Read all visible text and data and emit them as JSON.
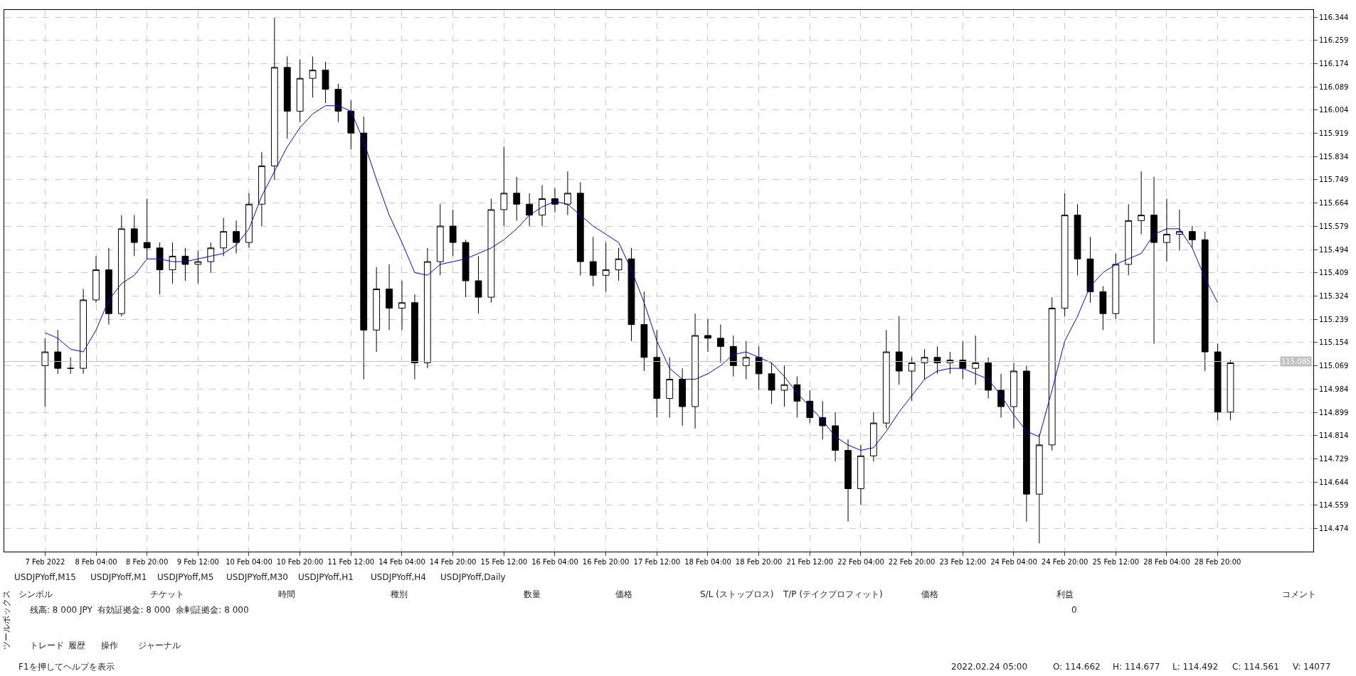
{
  "chart_data": {
    "type": "candlestick",
    "categories": [
      "7 Feb 2022",
      null,
      null,
      null,
      "8 Feb 04:00",
      null,
      null,
      null,
      "8 Feb 20:00",
      null,
      null,
      null,
      "9 Feb 12:00",
      null,
      null,
      null,
      "10 Feb 04:00",
      null,
      null,
      null,
      "10 Feb 20:00",
      null,
      null,
      null,
      "11 Feb 12:00",
      null,
      null,
      null,
      "14 Feb 04:00",
      null,
      null,
      null,
      "14 Feb 20:00",
      null,
      null,
      null,
      "15 Feb 12:00",
      null,
      null,
      null,
      "16 Feb 04:00",
      null,
      null,
      null,
      "16 Feb 20:00",
      null,
      null,
      null,
      "17 Feb 12:00",
      null,
      null,
      null,
      "18 Feb 04:00",
      null,
      null,
      null,
      "18 Feb 20:00",
      null,
      null,
      null,
      "21 Feb 12:00",
      null,
      null,
      null,
      "22 Feb 04:00",
      null,
      null,
      null,
      "22 Feb 20:00",
      null,
      null,
      null,
      "23 Feb 12:00",
      null,
      null,
      null,
      "24 Feb 04:00",
      null,
      null,
      null,
      "24 Feb 20:00",
      null,
      null,
      null,
      "25 Feb 12:00",
      null,
      null,
      null,
      "28 Feb 04:00",
      null,
      null,
      null,
      "28 Feb 20:00",
      null
    ],
    "series": [
      {
        "color": "#000000",
        "ohlc": [
          [
            115.07,
            115.17,
            114.92,
            115.12
          ],
          [
            115.12,
            115.2,
            115.04,
            115.06
          ],
          [
            115.06,
            115.1,
            115.04,
            115.06
          ],
          [
            115.06,
            115.35,
            115.04,
            115.31
          ],
          [
            115.31,
            115.47,
            115.3,
            115.42
          ],
          [
            115.42,
            115.5,
            115.22,
            115.26
          ],
          [
            115.26,
            115.62,
            115.25,
            115.57
          ],
          [
            115.57,
            115.62,
            115.47,
            115.52
          ],
          [
            115.52,
            115.68,
            115.46,
            115.5
          ],
          [
            115.5,
            115.52,
            115.33,
            115.42
          ],
          [
            115.42,
            115.52,
            115.37,
            115.47
          ],
          [
            115.47,
            115.5,
            115.38,
            115.44
          ],
          [
            115.44,
            115.49,
            115.37,
            115.45
          ],
          [
            115.45,
            115.52,
            115.41,
            115.5
          ],
          [
            115.5,
            115.61,
            115.47,
            115.56
          ],
          [
            115.56,
            115.6,
            115.48,
            115.52
          ],
          [
            115.52,
            115.7,
            115.5,
            115.66
          ],
          [
            115.66,
            115.85,
            115.58,
            115.8
          ],
          [
            115.8,
            116.34,
            115.75,
            116.16
          ],
          [
            116.16,
            116.2,
            115.9,
            116.0
          ],
          [
            116.0,
            116.19,
            115.96,
            116.12
          ],
          [
            116.12,
            116.2,
            116.05,
            116.15
          ],
          [
            116.15,
            116.18,
            116.03,
            116.08
          ],
          [
            116.08,
            116.1,
            115.96,
            116.0
          ],
          [
            116.0,
            116.04,
            115.86,
            115.92
          ],
          [
            115.92,
            115.98,
            115.02,
            115.2
          ],
          [
            115.2,
            115.43,
            115.12,
            115.35
          ],
          [
            115.35,
            115.44,
            115.2,
            115.28
          ],
          [
            115.28,
            115.38,
            115.2,
            115.3
          ],
          [
            115.3,
            115.33,
            115.02,
            115.08
          ],
          [
            115.08,
            115.5,
            115.06,
            115.45
          ],
          [
            115.45,
            115.66,
            115.4,
            115.58
          ],
          [
            115.58,
            115.64,
            115.47,
            115.52
          ],
          [
            115.52,
            115.53,
            115.32,
            115.38
          ],
          [
            115.38,
            115.47,
            115.26,
            115.32
          ],
          [
            115.32,
            115.68,
            115.3,
            115.64
          ],
          [
            115.64,
            115.87,
            115.58,
            115.7
          ],
          [
            115.7,
            115.76,
            115.6,
            115.66
          ],
          [
            115.66,
            115.7,
            115.58,
            115.62
          ],
          [
            115.62,
            115.73,
            115.58,
            115.68
          ],
          [
            115.68,
            115.72,
            115.63,
            115.66
          ],
          [
            115.66,
            115.78,
            115.62,
            115.7
          ],
          [
            115.7,
            115.74,
            115.4,
            115.45
          ],
          [
            115.45,
            115.54,
            115.36,
            115.4
          ],
          [
            115.4,
            115.52,
            115.34,
            115.42
          ],
          [
            115.42,
            115.5,
            115.38,
            115.46
          ],
          [
            115.46,
            115.5,
            115.16,
            115.22
          ],
          [
            115.22,
            115.34,
            115.05,
            115.1
          ],
          [
            115.1,
            115.2,
            114.88,
            114.95
          ],
          [
            114.95,
            115.1,
            114.88,
            115.02
          ],
          [
            115.02,
            115.06,
            114.85,
            114.92
          ],
          [
            114.92,
            115.26,
            114.84,
            115.18
          ],
          [
            115.18,
            115.24,
            115.12,
            115.17
          ],
          [
            115.17,
            115.22,
            115.08,
            115.14
          ],
          [
            115.14,
            115.18,
            115.03,
            115.07
          ],
          [
            115.07,
            115.16,
            115.02,
            115.1
          ],
          [
            115.1,
            115.14,
            114.98,
            115.04
          ],
          [
            115.04,
            115.08,
            114.93,
            114.98
          ],
          [
            114.98,
            115.07,
            114.92,
            115.0
          ],
          [
            115.0,
            115.03,
            114.88,
            114.94
          ],
          [
            114.94,
            114.98,
            114.86,
            114.88
          ],
          [
            114.88,
            114.94,
            114.8,
            114.85
          ],
          [
            114.85,
            114.9,
            114.72,
            114.76
          ],
          [
            114.76,
            114.8,
            114.5,
            114.62
          ],
          [
            114.62,
            114.78,
            114.56,
            114.74
          ],
          [
            114.74,
            114.9,
            114.72,
            114.86
          ],
          [
            114.86,
            115.2,
            114.84,
            115.12
          ],
          [
            115.12,
            115.25,
            115.0,
            115.05
          ],
          [
            115.05,
            115.1,
            114.94,
            115.08
          ],
          [
            115.08,
            115.13,
            115.02,
            115.1
          ],
          [
            115.1,
            115.14,
            115.04,
            115.08
          ],
          [
            115.08,
            115.12,
            115.04,
            115.09
          ],
          [
            115.09,
            115.16,
            115.02,
            115.06
          ],
          [
            115.06,
            115.18,
            115.0,
            115.08
          ],
          [
            115.08,
            115.1,
            114.95,
            114.98
          ],
          [
            114.98,
            115.04,
            114.88,
            114.92
          ],
          [
            114.92,
            115.08,
            114.84,
            115.05
          ],
          [
            115.05,
            115.07,
            114.5,
            114.6
          ],
          [
            114.6,
            114.82,
            114.42,
            114.78
          ],
          [
            114.78,
            115.32,
            114.76,
            115.28
          ],
          [
            115.28,
            115.7,
            115.25,
            115.62
          ],
          [
            115.62,
            115.66,
            115.4,
            115.46
          ],
          [
            115.46,
            115.54,
            115.3,
            115.34
          ],
          [
            115.34,
            115.36,
            115.2,
            115.26
          ],
          [
            115.26,
            115.48,
            115.24,
            115.44
          ],
          [
            115.44,
            115.66,
            115.4,
            115.6
          ],
          [
            115.6,
            115.78,
            115.55,
            115.62
          ],
          [
            115.62,
            115.76,
            115.15,
            115.52
          ],
          [
            115.52,
            115.68,
            115.45,
            115.55
          ],
          [
            115.55,
            115.64,
            115.49,
            115.56
          ],
          [
            115.56,
            115.58,
            115.5,
            115.53
          ],
          [
            115.53,
            115.56,
            115.05,
            115.12
          ],
          [
            115.12,
            115.15,
            114.87,
            114.9
          ],
          [
            114.9,
            115.09,
            114.87,
            115.08
          ]
        ]
      },
      {
        "type": "line",
        "color": "#0000ff",
        "values": [
          115.19,
          115.17,
          115.13,
          115.12,
          115.2,
          115.31,
          115.37,
          115.4,
          115.46,
          115.46,
          115.45,
          115.45,
          115.46,
          115.47,
          115.48,
          115.51,
          115.57,
          115.69,
          115.78,
          115.87,
          115.94,
          115.99,
          116.02,
          116.02,
          116.0,
          115.89,
          115.75,
          115.62,
          115.52,
          115.41,
          115.4,
          115.44,
          115.45,
          115.46,
          115.48,
          115.5,
          115.53,
          115.57,
          115.62,
          115.65,
          115.67,
          115.66,
          115.62,
          115.58,
          115.55,
          115.52,
          115.42,
          115.3,
          115.16,
          115.06,
          115.02,
          115.02,
          115.04,
          115.07,
          115.11,
          115.12,
          115.1,
          115.08,
          115.03,
          114.97,
          114.92,
          114.87,
          114.81,
          114.78,
          114.76,
          114.77,
          114.83,
          114.9,
          114.96,
          115.02,
          115.05,
          115.06,
          115.06,
          115.04,
          115.02,
          114.96,
          114.89,
          114.83,
          114.81,
          114.98,
          115.16,
          115.25,
          115.36,
          115.41,
          115.44,
          115.46,
          115.48,
          115.55,
          115.57,
          115.57,
          115.5,
          115.39,
          115.3,
          null
        ]
      }
    ],
    "ylim": [
      114.39,
      116.37
    ],
    "yticks": [
      116.344,
      116.259,
      116.174,
      116.089,
      116.004,
      115.919,
      115.834,
      115.749,
      115.664,
      115.579,
      115.494,
      115.409,
      115.324,
      115.239,
      115.154,
      115.069,
      114.984,
      114.899,
      114.814,
      114.729,
      114.644,
      114.559,
      114.474
    ],
    "ref_lines": [
      {
        "axis": "y",
        "value": 115.085,
        "label": "115.085",
        "color": "#c0c0c0"
      }
    ],
    "grid": true,
    "annotations": [
      "USDJPYoff,M15",
      "USDJPYoff,M1",
      "USDJPYoff,M5",
      "USDJPYoff,M30",
      "USDJPYoff,H1",
      "USDJPYoff,H4",
      "USDJPYoff,Daily",
      "シンボル",
      "チケット",
      "時間",
      "種別",
      "数量",
      "価格",
      "S/L (ストップロス)",
      "T/P (テイクプロフィット)",
      "価格",
      "利益",
      "コメント",
      "残高: 8 000 JPY  有効証拠金: 8 000  余剰証拠金: 8 000",
      "0",
      "ツールボックス",
      "トレード",
      "履歴",
      "操作",
      "ジャーナル",
      "F1を押してヘルプを表示",
      "2022.02.24 05:00",
      "O: 114.662",
      "H: 114.677",
      "L: 114.492",
      "C: 114.561",
      "V: 14077"
    ]
  }
}
